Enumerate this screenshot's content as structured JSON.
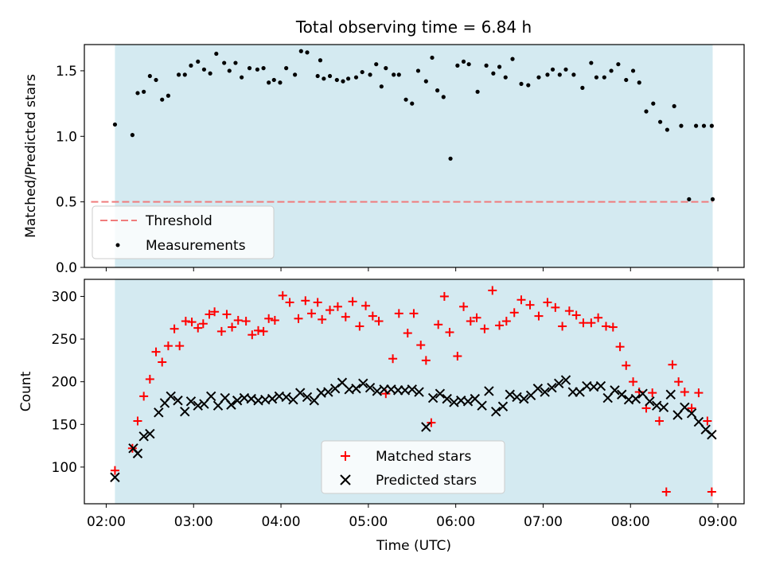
{
  "chart_data": [
    {
      "type": "scatter",
      "title": "Total observing time = 6.84 h",
      "ylabel": "Matched/Predicted stars",
      "ylim": [
        0,
        1.7
      ],
      "yticks": [
        0.0,
        0.5,
        1.0,
        1.5
      ],
      "ytick_labels": [
        "0.0",
        "0.5",
        "1.0",
        "1.5"
      ],
      "shaded_span": [
        2.1,
        8.94
      ],
      "threshold": 0.5,
      "legend": {
        "placement": "lower-left",
        "entries": [
          "Threshold",
          "Measurements"
        ]
      },
      "colors": {
        "span": "#d4eaf1",
        "threshold": "#f07c7c",
        "points": "#000000"
      },
      "x": [
        2.1,
        2.3,
        2.36,
        2.43,
        2.5,
        2.57,
        2.64,
        2.71,
        2.83,
        2.9,
        2.97,
        3.05,
        3.12,
        3.19,
        3.26,
        3.35,
        3.41,
        3.48,
        3.55,
        3.64,
        3.73,
        3.8,
        3.86,
        3.92,
        3.99,
        4.06,
        4.16,
        4.23,
        4.3,
        4.42,
        4.45,
        4.49,
        4.56,
        4.64,
        4.71,
        4.77,
        4.86,
        4.93,
        5.02,
        5.09,
        5.15,
        5.2,
        5.29,
        5.35,
        5.43,
        5.5,
        5.57,
        5.66,
        5.73,
        5.79,
        5.86,
        5.94,
        6.02,
        6.09,
        6.15,
        6.25,
        6.35,
        6.43,
        6.5,
        6.57,
        6.65,
        6.75,
        6.83,
        6.95,
        7.05,
        7.11,
        7.19,
        7.26,
        7.35,
        7.45,
        7.55,
        7.61,
        7.7,
        7.78,
        7.86,
        7.95,
        8.03,
        8.1,
        8.18,
        8.26,
        8.34,
        8.42,
        8.5,
        8.58,
        8.67,
        8.75,
        8.84,
        8.93,
        8.94
      ],
      "y": [
        1.09,
        1.01,
        1.33,
        1.34,
        1.46,
        1.43,
        1.28,
        1.31,
        1.47,
        1.47,
        1.54,
        1.57,
        1.51,
        1.48,
        1.63,
        1.56,
        1.5,
        1.56,
        1.45,
        1.52,
        1.51,
        1.52,
        1.41,
        1.43,
        1.41,
        1.52,
        1.47,
        1.65,
        1.64,
        1.46,
        1.58,
        1.44,
        1.46,
        1.43,
        1.42,
        1.44,
        1.45,
        1.49,
        1.47,
        1.55,
        1.38,
        1.52,
        1.47,
        1.47,
        1.28,
        1.25,
        1.5,
        1.42,
        1.6,
        1.35,
        1.3,
        0.83,
        1.54,
        1.57,
        1.55,
        1.34,
        1.54,
        1.48,
        1.53,
        1.45,
        1.59,
        1.4,
        1.39,
        1.45,
        1.47,
        1.51,
        1.47,
        1.51,
        1.47,
        1.37,
        1.56,
        1.45,
        1.45,
        1.5,
        1.55,
        1.43,
        1.5,
        1.41,
        1.19,
        1.25,
        1.11,
        1.05,
        1.23,
        1.08,
        0.52,
        1.08,
        1.08,
        1.08,
        0.52
      ]
    },
    {
      "type": "scatter",
      "xlabel": "Time (UTC)",
      "ylabel": "Count",
      "ylim": [
        57,
        320
      ],
      "yticks": [
        100,
        150,
        200,
        250,
        300
      ],
      "ytick_labels": [
        "100",
        "150",
        "200",
        "250",
        "300"
      ],
      "xlim": [
        1.75,
        9.3
      ],
      "xticks": [
        2,
        3,
        4,
        5,
        6,
        7,
        8,
        9
      ],
      "xtick_labels": [
        "02:00",
        "03:00",
        "04:00",
        "05:00",
        "06:00",
        "07:00",
        "08:00",
        "09:00"
      ],
      "shaded_span": [
        2.1,
        8.94
      ],
      "legend": {
        "placement": "lower-center",
        "entries": [
          "Matched stars",
          "Predicted stars"
        ]
      },
      "colors": {
        "span": "#d4eaf1",
        "matched": "#ff0000",
        "predicted": "#000000"
      },
      "series": [
        {
          "name": "Matched stars",
          "x": [
            2.1,
            2.3,
            2.36,
            2.43,
            2.5,
            2.57,
            2.64,
            2.71,
            2.78,
            2.84,
            2.91,
            2.98,
            3.05,
            3.11,
            3.18,
            3.24,
            3.32,
            3.38,
            3.44,
            3.51,
            3.6,
            3.67,
            3.74,
            3.8,
            3.86,
            3.93,
            4.02,
            4.1,
            4.2,
            4.28,
            4.35,
            4.42,
            4.47,
            4.56,
            4.65,
            4.74,
            4.82,
            4.9,
            4.97,
            5.05,
            5.12,
            5.2,
            5.28,
            5.35,
            5.45,
            5.52,
            5.6,
            5.66,
            5.72,
            5.8,
            5.87,
            5.93,
            6.02,
            6.09,
            6.17,
            6.24,
            6.33,
            6.42,
            6.5,
            6.58,
            6.67,
            6.75,
            6.85,
            6.95,
            7.05,
            7.14,
            7.22,
            7.3,
            7.38,
            7.46,
            7.55,
            7.63,
            7.72,
            7.8,
            7.88,
            7.95,
            8.03,
            8.1,
            8.18,
            8.25,
            8.33,
            8.41,
            8.48,
            8.55,
            8.62,
            8.7,
            8.78,
            8.88,
            8.93
          ],
          "y": [
            96,
            122,
            154,
            183,
            203,
            235,
            223,
            242,
            262,
            242,
            271,
            270,
            263,
            268,
            279,
            282,
            259,
            279,
            264,
            272,
            271,
            255,
            260,
            259,
            274,
            272,
            301,
            293,
            274,
            295,
            280,
            293,
            273,
            284,
            288,
            276,
            294,
            265,
            289,
            277,
            271,
            186,
            227,
            280,
            257,
            280,
            243,
            225,
            152,
            267,
            300,
            258,
            230,
            288,
            271,
            275,
            262,
            307,
            266,
            271,
            281,
            296,
            290,
            277,
            293,
            287,
            265,
            283,
            278,
            269,
            269,
            275,
            265,
            264,
            241,
            219,
            200,
            188,
            169,
            187,
            154,
            71,
            220,
            200,
            188,
            169,
            187,
            154,
            71
          ]
        },
        {
          "name": "Predicted stars",
          "x": [
            2.1,
            2.31,
            2.36,
            2.43,
            2.5,
            2.6,
            2.67,
            2.74,
            2.82,
            2.9,
            2.97,
            3.05,
            3.12,
            3.2,
            3.28,
            3.36,
            3.43,
            3.5,
            3.58,
            3.66,
            3.74,
            3.82,
            3.9,
            3.98,
            4.06,
            4.14,
            4.22,
            4.3,
            4.38,
            4.46,
            4.54,
            4.62,
            4.7,
            4.78,
            4.86,
            4.94,
            5.02,
            5.1,
            5.18,
            5.26,
            5.34,
            5.42,
            5.5,
            5.58,
            5.66,
            5.74,
            5.82,
            5.9,
            5.98,
            6.06,
            6.14,
            6.22,
            6.3,
            6.38,
            6.46,
            6.54,
            6.62,
            6.7,
            6.78,
            6.86,
            6.94,
            7.02,
            7.1,
            7.18,
            7.26,
            7.34,
            7.42,
            7.5,
            7.58,
            7.66,
            7.74,
            7.82,
            7.9,
            7.98,
            8.06,
            8.14,
            8.22,
            8.3,
            8.38,
            8.46,
            8.54,
            8.62,
            8.7,
            8.78,
            8.86,
            8.93
          ],
          "y": [
            88,
            122,
            116,
            136,
            139,
            164,
            175,
            183,
            178,
            165,
            177,
            172,
            174,
            183,
            172,
            181,
            173,
            178,
            181,
            180,
            178,
            179,
            180,
            183,
            182,
            179,
            187,
            182,
            178,
            187,
            188,
            192,
            199,
            191,
            192,
            198,
            193,
            189,
            191,
            191,
            190,
            190,
            191,
            188,
            147,
            181,
            186,
            180,
            176,
            178,
            177,
            180,
            172,
            189,
            165,
            171,
            185,
            182,
            180,
            184,
            192,
            188,
            193,
            198,
            202,
            188,
            188,
            195,
            194,
            195,
            181,
            190,
            185,
            179,
            180,
            186,
            177,
            172,
            170,
            185,
            161,
            170,
            163,
            153,
            144,
            138
          ]
        }
      ]
    }
  ]
}
